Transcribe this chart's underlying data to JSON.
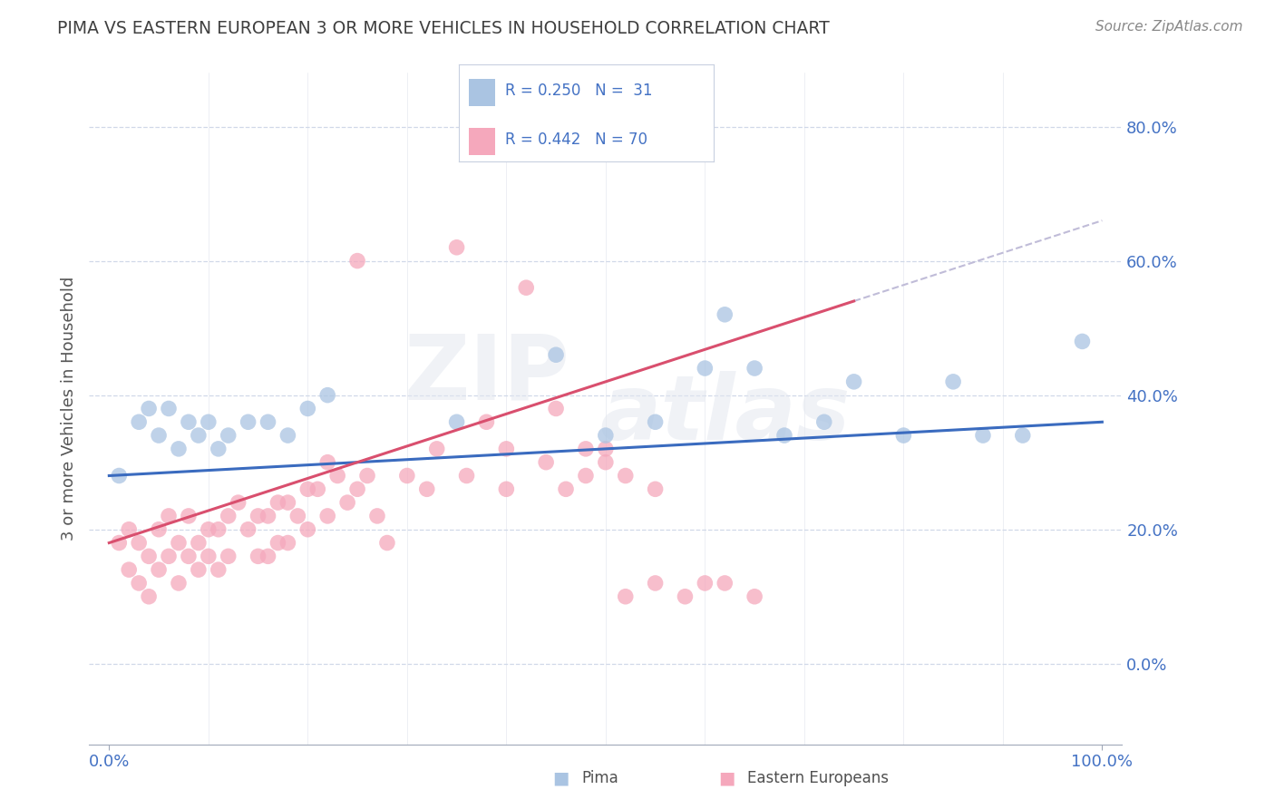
{
  "title": "PIMA VS EASTERN EUROPEAN 3 OR MORE VEHICLES IN HOUSEHOLD CORRELATION CHART",
  "source": "Source: ZipAtlas.com",
  "ylabel": "3 or more Vehicles in Household",
  "blue_color": "#aac4e2",
  "pink_color": "#f5a8bc",
  "blue_line_color": "#3a6bbf",
  "pink_line_color": "#d94f6e",
  "dashed_line_color": "#c0bcd8",
  "grid_color": "#d0d8e8",
  "tick_color": "#4472c4",
  "pima_x": [
    1,
    3,
    4,
    5,
    6,
    7,
    8,
    9,
    10,
    11,
    12,
    14,
    16,
    18,
    20,
    22,
    35,
    45,
    50,
    55,
    60,
    62,
    65,
    68,
    72,
    75,
    80,
    85,
    88,
    92,
    98
  ],
  "pima_y": [
    28,
    36,
    38,
    34,
    38,
    32,
    36,
    34,
    36,
    32,
    34,
    36,
    36,
    34,
    38,
    40,
    36,
    46,
    34,
    36,
    44,
    52,
    44,
    34,
    36,
    42,
    34,
    42,
    34,
    34,
    48
  ],
  "eastern_x": [
    1,
    2,
    2,
    3,
    3,
    4,
    4,
    5,
    5,
    6,
    6,
    7,
    7,
    8,
    8,
    9,
    9,
    10,
    10,
    11,
    11,
    12,
    12,
    13,
    14,
    15,
    15,
    16,
    16,
    17,
    17,
    18,
    18,
    19,
    20,
    20,
    21,
    22,
    22,
    23,
    24,
    25,
    25,
    26,
    27,
    28,
    30,
    32,
    33,
    35,
    36,
    38,
    40,
    40,
    42,
    44,
    45,
    48,
    50,
    52,
    55,
    58,
    60,
    62,
    65,
    55,
    52,
    50,
    48,
    46
  ],
  "eastern_y": [
    18,
    20,
    14,
    18,
    12,
    16,
    10,
    20,
    14,
    22,
    16,
    18,
    12,
    22,
    16,
    18,
    14,
    20,
    16,
    20,
    14,
    22,
    16,
    24,
    20,
    22,
    16,
    22,
    16,
    24,
    18,
    24,
    18,
    22,
    26,
    20,
    26,
    30,
    22,
    28,
    24,
    60,
    26,
    28,
    22,
    18,
    28,
    26,
    32,
    62,
    28,
    36,
    32,
    26,
    56,
    30,
    38,
    32,
    32,
    10,
    12,
    10,
    12,
    12,
    10,
    26,
    28,
    30,
    28,
    26
  ],
  "blue_line_x0": 0,
  "blue_line_y0": 28,
  "blue_line_x1": 100,
  "blue_line_y1": 36,
  "pink_line_x0": 0,
  "pink_line_y0": 18,
  "pink_line_x1": 75,
  "pink_line_y1": 54,
  "dash_line_x0": 75,
  "dash_line_y0": 54,
  "dash_line_x1": 100,
  "dash_line_y1": 66,
  "yticks": [
    0,
    20,
    40,
    60,
    80
  ],
  "ytick_labels": [
    "0.0%",
    "20.0%",
    "40.0%",
    "60.0%",
    "80.0%"
  ],
  "xlim": [
    -2,
    102
  ],
  "ylim": [
    -12,
    88
  ],
  "watermark_zip": "ZIP",
  "watermark_atlas": "atlas",
  "legend_entries": [
    {
      "label": "R = 0.250   N =  31",
      "color": "#aac4e2"
    },
    {
      "label": "R = 0.442   N = 70",
      "color": "#f5a8bc"
    }
  ],
  "bottom_legend": [
    {
      "label": "Pima",
      "color": "#aac4e2"
    },
    {
      "label": "Eastern Europeans",
      "color": "#f5a8bc"
    }
  ]
}
